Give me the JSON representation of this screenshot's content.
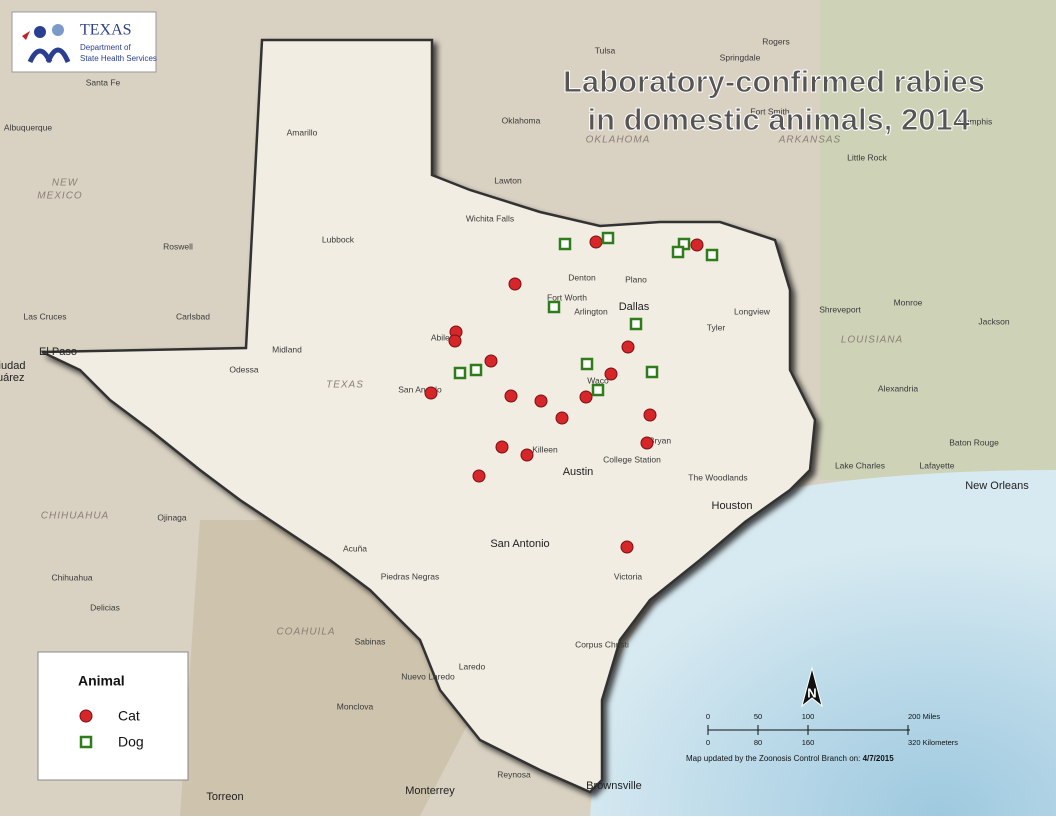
{
  "header": {
    "logo": {
      "line1": "TEXAS",
      "line2": "Department of",
      "line3": "State Health Services"
    },
    "title": [
      "Laboratory-confirmed rabies",
      "in domestic animals, 2014"
    ]
  },
  "legend": {
    "title": "Animal",
    "items": [
      "Cat",
      "Dog"
    ]
  },
  "scale": {
    "miles": [
      "0",
      "50",
      "100",
      "200 Miles"
    ],
    "kilometers": [
      "0",
      "80",
      "160",
      "320 Kilometers"
    ]
  },
  "north": "N",
  "credit": {
    "text": "Map updated by the Zoonosis Control Branch on:",
    "date": "4/7/2015"
  },
  "places": [
    "Santa Fe",
    "Albuquerque",
    "NEW",
    "MEXICO",
    "Roswell",
    "Las Cruces",
    "Carlsbad",
    "El Paso",
    "Ciudad",
    "Juárez",
    "Amarillo",
    "Lubbock",
    "Midland",
    "Odessa",
    "TEXAS",
    "San Angelo",
    "Abilene",
    "Wichita Falls",
    "Lawton",
    "Oklahoma",
    "OKLAHOMA",
    "Tulsa",
    "Springdale",
    "Rogers",
    "Fort Smith",
    "ARKANSAS",
    "Little Rock",
    "Memphis",
    "Denton",
    "Plano",
    "Dallas",
    "Fort Worth",
    "Arlington",
    "Tyler",
    "Longview",
    "Shreveport",
    "Monroe",
    "LOUISIANA",
    "Jackson",
    "Alexandria",
    "Waco",
    "Killeen",
    "Bryan",
    "College Station",
    "Austin",
    "The Woodlands",
    "Houston",
    "San Antonio",
    "Victoria",
    "Corpus Christi",
    "Laredo",
    "Nuevo Laredo",
    "Piedras Negras",
    "Acuña",
    "Sabinas",
    "Monclova",
    "Monterrey",
    "Reynosa",
    "Brownsville",
    "Torreon",
    "Chihuahua",
    "Delicias",
    "CHIHUAHUA",
    "COAHUILA",
    "Ojinaga",
    "Lake Charles",
    "Lafayette",
    "Baton Rouge",
    "New Orleans"
  ]
}
